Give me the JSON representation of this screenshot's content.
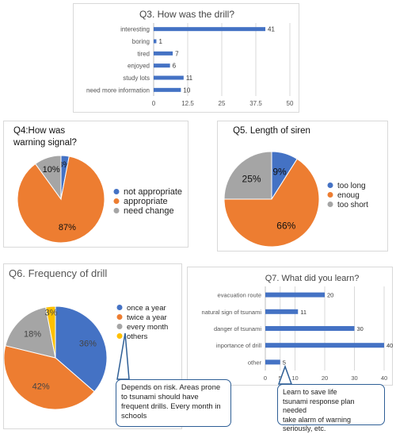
{
  "colors": {
    "blue": "#4472c4",
    "orange": "#ed7d31",
    "gray": "#a5a5a5",
    "yellow": "#ffc000",
    "grid": "#d9d9d9",
    "callout_border": "#2f5f96"
  },
  "chart_data": [
    {
      "id": "q3",
      "type": "bar",
      "orientation": "horizontal",
      "title": "Q3. How was the drill?",
      "categories": [
        "interesting",
        "boring",
        "tired",
        "enjoyed",
        "study lots",
        "need more information"
      ],
      "values": [
        41,
        1,
        7,
        6,
        11,
        10
      ],
      "xlim": [
        0,
        50
      ],
      "xticks": [
        "0",
        "12.5",
        "25",
        "37.5",
        "50"
      ],
      "data_labels": [
        "41",
        "1",
        "7",
        "6",
        "11",
        "10"
      ],
      "grid": true
    },
    {
      "id": "q4",
      "type": "pie",
      "title": "Q4:How was warning signal?",
      "labels": [
        "not appropriate",
        "appropriate",
        "need change"
      ],
      "values": [
        3,
        87,
        10
      ],
      "data_labels": [
        "3%",
        "87%",
        "10%"
      ],
      "legend": "right"
    },
    {
      "id": "q5",
      "type": "pie",
      "title": "Q5. Length of siren",
      "labels": [
        "too long",
        "enoug",
        "too short"
      ],
      "values": [
        9,
        66,
        25
      ],
      "data_labels": [
        "9%",
        "66%",
        "25%"
      ],
      "legend": "right"
    },
    {
      "id": "q6",
      "type": "pie",
      "title": "Q6. Frequency of drill",
      "labels": [
        "once a year",
        "twice a year",
        "every month",
        "others"
      ],
      "values": [
        36,
        42,
        18,
        3
      ],
      "data_labels": [
        "36%",
        "42%",
        "18%",
        "3%"
      ],
      "legend": "right"
    },
    {
      "id": "q7",
      "type": "bar",
      "orientation": "horizontal",
      "title": "Q7. What did you learn?",
      "categories": [
        "evacuation route",
        "natural sign of tsunami",
        "danger of tsunami",
        "inportance of drill",
        "other"
      ],
      "values": [
        20,
        11,
        30,
        40,
        5
      ],
      "xlim": [
        0,
        40
      ],
      "xticks": [
        "0",
        "5",
        "10",
        "20",
        "30",
        "40"
      ],
      "data_labels": [
        "20",
        "11",
        "30",
        "40",
        "5"
      ],
      "grid": true
    }
  ],
  "callouts": {
    "q6_note": "Depends on risk. Areas prone to tsunami should have frequent drills. Every month in schools",
    "q7_note": "Learn to save life\ntsunami response plan needed\ntake alarm of warning seriously, etc."
  }
}
